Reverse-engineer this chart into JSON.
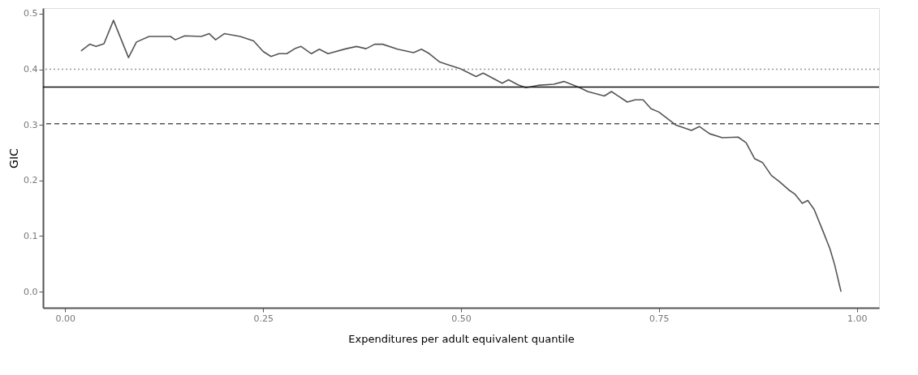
{
  "chart_data": {
    "type": "line",
    "xlabel": "Expenditures per adult equivalent quantile",
    "ylabel": "GIC",
    "xlim": [
      -0.028,
      1.028
    ],
    "ylim": [
      -0.029,
      0.51
    ],
    "xticks": [
      {
        "value": 0,
        "label": "0.00"
      },
      {
        "value": 0.25,
        "label": "0.25"
      },
      {
        "value": 0.5,
        "label": "0.50"
      },
      {
        "value": 0.75,
        "label": "0.75"
      },
      {
        "value": 1,
        "label": "1.00"
      }
    ],
    "yticks": [
      {
        "value": 0,
        "label": "0.0"
      },
      {
        "value": 0.1,
        "label": "0.1"
      },
      {
        "value": 0.2,
        "label": "0.2"
      },
      {
        "value": 0.3,
        "label": "0.3"
      },
      {
        "value": 0.4,
        "label": "0.4"
      },
      {
        "value": 0.5,
        "label": "0.5"
      }
    ],
    "grid": false,
    "marker": "none",
    "line_style": "solid",
    "ref_lines": [
      {
        "axis": "y",
        "value": 0.4,
        "color": "#999999",
        "line_style": "dotted"
      },
      {
        "axis": "y",
        "value": 0.368,
        "color": "#111111",
        "line_style": "solid"
      },
      {
        "axis": "y",
        "value": 0.302,
        "color": "#555555",
        "line_style": "dashed"
      }
    ],
    "series": [
      {
        "color": "#555555",
        "x": [
          0.02,
          0.031,
          0.039,
          0.049,
          0.061,
          0.08,
          0.09,
          0.106,
          0.133,
          0.139,
          0.151,
          0.172,
          0.182,
          0.19,
          0.201,
          0.221,
          0.238,
          0.25,
          0.26,
          0.27,
          0.28,
          0.29,
          0.298,
          0.311,
          0.321,
          0.332,
          0.355,
          0.368,
          0.38,
          0.391,
          0.401,
          0.42,
          0.44,
          0.45,
          0.46,
          0.473,
          0.486,
          0.499,
          0.519,
          0.528,
          0.552,
          0.56,
          0.572,
          0.582,
          0.597,
          0.617,
          0.63,
          0.65,
          0.66,
          0.681,
          0.69,
          0.71,
          0.72,
          0.73,
          0.74,
          0.75,
          0.771,
          0.791,
          0.801,
          0.814,
          0.83,
          0.85,
          0.86,
          0.871,
          0.881,
          0.892,
          0.902,
          0.914,
          0.922,
          0.931,
          0.938,
          0.946,
          0.958,
          0.966,
          0.972,
          0.98
        ],
        "values": [
          0.433,
          0.445,
          0.441,
          0.446,
          0.488,
          0.421,
          0.449,
          0.459,
          0.459,
          0.453,
          0.46,
          0.459,
          0.464,
          0.453,
          0.464,
          0.459,
          0.451,
          0.432,
          0.423,
          0.428,
          0.428,
          0.437,
          0.441,
          0.428,
          0.436,
          0.428,
          0.437,
          0.441,
          0.437,
          0.445,
          0.445,
          0.436,
          0.43,
          0.436,
          0.428,
          0.413,
          0.407,
          0.401,
          0.387,
          0.393,
          0.375,
          0.381,
          0.372,
          0.367,
          0.371,
          0.373,
          0.378,
          0.367,
          0.36,
          0.352,
          0.36,
          0.341,
          0.345,
          0.345,
          0.329,
          0.323,
          0.3,
          0.29,
          0.297,
          0.284,
          0.277,
          0.278,
          0.268,
          0.239,
          0.232,
          0.209,
          0.198,
          0.183,
          0.175,
          0.159,
          0.164,
          0.148,
          0.106,
          0.077,
          0.048,
          0.0
        ]
      }
    ]
  }
}
